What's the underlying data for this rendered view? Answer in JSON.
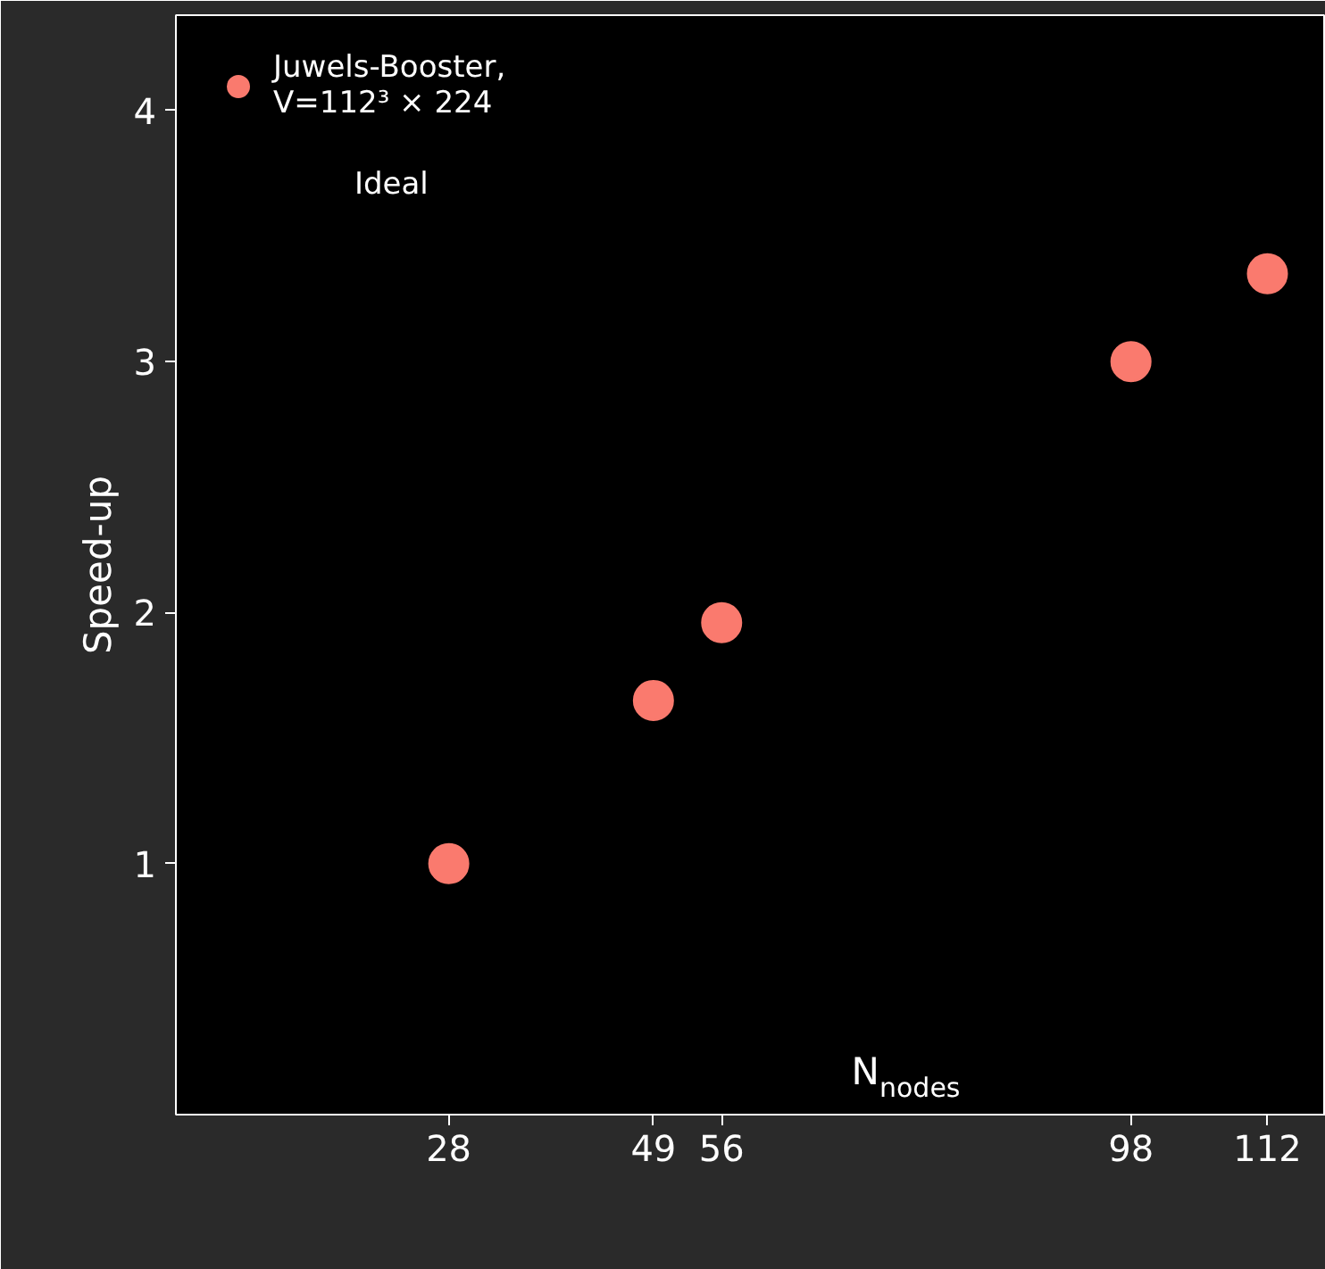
{
  "chart_data": {
    "type": "scatter",
    "xlabel": "N$_{nodes}$",
    "ylabel": "Speed-up",
    "x": [
      28,
      49,
      56,
      98,
      112
    ],
    "series": [
      {
        "name": "Juwels-Booster,\nV=112³ × 224",
        "color": "#fa7a6e",
        "values": [
          1.0,
          1.65,
          1.96,
          3.0,
          3.35
        ]
      }
    ],
    "xlim": [
      0,
      118
    ],
    "ylim": [
      0,
      4.38
    ],
    "xticks": [
      28,
      49,
      56,
      98,
      112
    ],
    "yticks": [
      1,
      2,
      3,
      4
    ],
    "marker": "circle",
    "grid": false,
    "legend": "top left",
    "annotations": [
      "Ideal"
    ]
  }
}
